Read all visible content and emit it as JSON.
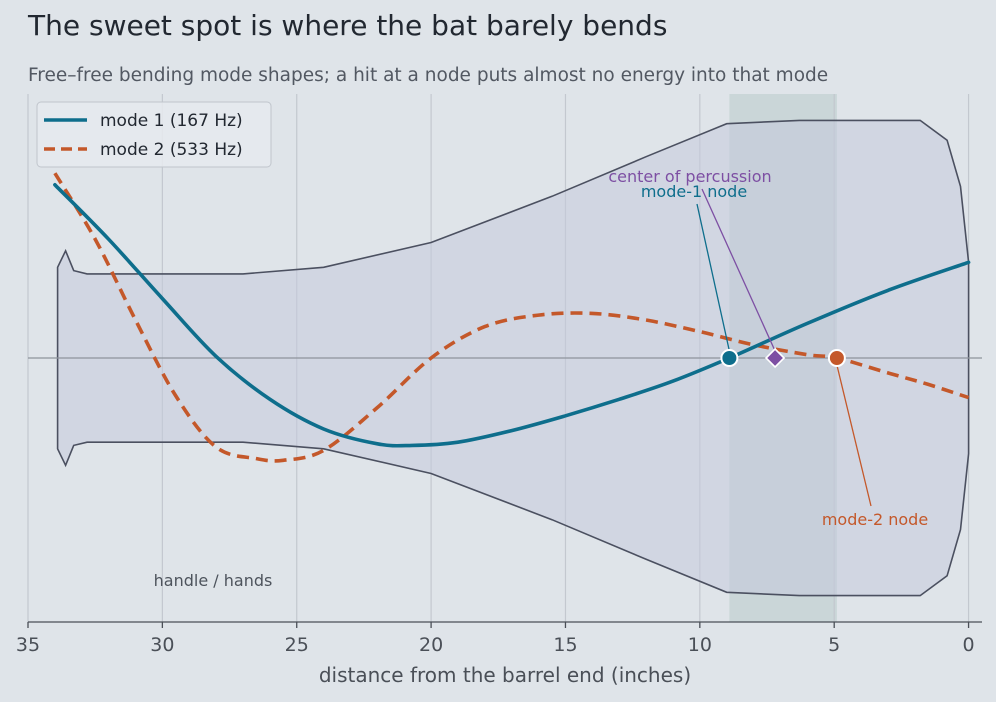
{
  "chart_data": {
    "type": "line",
    "title": "The sweet spot is where the bat barely bends",
    "subtitle": "Free–free bending mode shapes; a hit at a node puts almost no energy into that mode",
    "xlabel": "distance from the barrel end (inches)",
    "xlim": [
      35,
      -0.5
    ],
    "ylim": [
      -1.6,
      1.6
    ],
    "x_ticks": [
      35,
      30,
      25,
      20,
      15,
      10,
      5,
      0
    ],
    "grid": "vertical",
    "legend": "top-left",
    "sweet_spot_band": [
      8.9,
      4.9
    ],
    "series": [
      {
        "name": "mode 1  (167 Hz)",
        "color": "#0e6e8c",
        "style": "solid",
        "x": [
          34.0,
          32.0,
          30.0,
          28.0,
          26.0,
          24.0,
          22.0,
          20.7,
          19.0,
          17.0,
          15.0,
          13.0,
          11.0,
          8.9,
          6.0,
          3.0,
          0.0
        ],
        "y": [
          1.05,
          0.72,
          0.36,
          0.01,
          -0.25,
          -0.43,
          -0.52,
          -0.53,
          -0.51,
          -0.44,
          -0.35,
          -0.25,
          -0.14,
          0.0,
          0.21,
          0.41,
          0.58
        ]
      },
      {
        "name": "mode 2  (533 Hz)",
        "color": "#c4582a",
        "style": "dashed",
        "x": [
          34.0,
          32.5,
          31.0,
          29.5,
          28.0,
          26.5,
          25.5,
          24.0,
          22.0,
          20.0,
          18.0,
          16.0,
          14.0,
          12.0,
          10.0,
          8.0,
          6.0,
          4.9,
          3.0,
          1.5,
          0.0
        ],
        "y": [
          1.12,
          0.72,
          0.23,
          -0.23,
          -0.54,
          -0.61,
          -0.62,
          -0.56,
          -0.3,
          0.0,
          0.19,
          0.26,
          0.27,
          0.23,
          0.16,
          0.08,
          0.02,
          0.0,
          -0.09,
          -0.16,
          -0.24
        ]
      }
    ],
    "markers": [
      {
        "label": "mode-1 node",
        "x": 8.9,
        "y": 0,
        "color": "#0e6e8c",
        "shape": "circle"
      },
      {
        "label": "center of percussion",
        "x": 7.2,
        "y": 0,
        "color": "#7d4fa3",
        "shape": "diamond"
      },
      {
        "label": "mode-2 node",
        "x": 4.9,
        "y": 0,
        "color": "#c4582a",
        "shape": "circle"
      }
    ],
    "annotations": [
      {
        "text": "handle / hands"
      }
    ],
    "bat_profile": {
      "x": [
        33.9,
        33.6,
        33.3,
        32.8,
        27.0,
        24.0,
        20.0,
        15.5,
        12.0,
        9.0,
        6.3,
        1.8,
        0.8,
        0.3,
        0.0
      ],
      "half_width": [
        0.55,
        0.65,
        0.53,
        0.51,
        0.51,
        0.55,
        0.7,
        0.98,
        1.22,
        1.42,
        1.44,
        1.44,
        1.32,
        1.04,
        0.58
      ]
    }
  }
}
